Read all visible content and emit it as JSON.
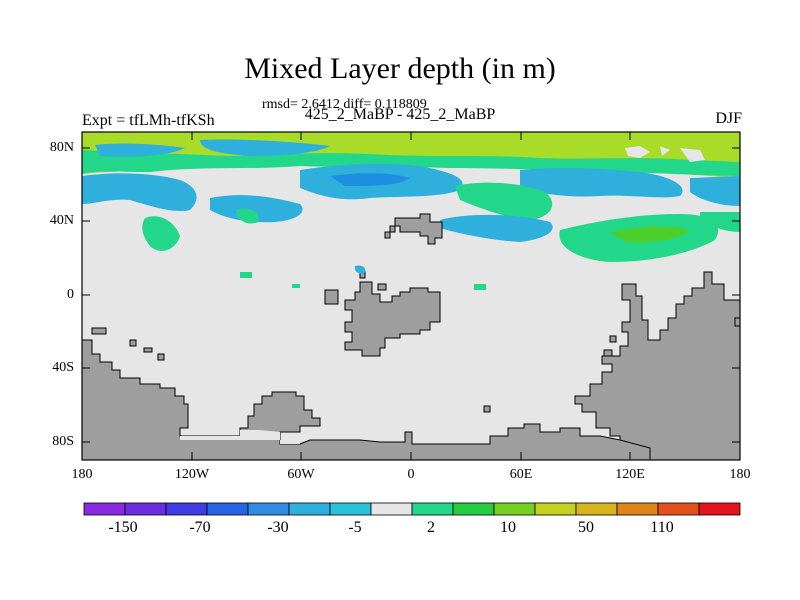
{
  "header": {
    "title": "Mixed Layer depth (in m)",
    "stats": "rmsd= 2.6412 diff= 0.118809",
    "case": "425_2_MaBP - 425_2_MaBP",
    "expt": "Expt = tfLMh-tfKSh",
    "season": "DJF"
  },
  "axes": {
    "y_ticks": [
      "80N",
      "40N",
      "0",
      "40S",
      "80S"
    ],
    "x_ticks": [
      "180",
      "120W",
      "60W",
      "0",
      "60E",
      "120E",
      "180"
    ]
  },
  "colors": {
    "land": "#9e9e9e",
    "near_zero": "#e6e6e6",
    "light_blue": "#2fb0dc",
    "mid_blue": "#1e8fe0",
    "aqua_green": "#22d78a",
    "yellow_green": "#a8dc28",
    "green": "#4ccf2a"
  },
  "colorbar": {
    "labels": [
      "-150",
      "-70",
      "-30",
      "-5",
      "2",
      "10",
      "50",
      "110"
    ],
    "colors": [
      "#8a2be2",
      "#6a2ee0",
      "#3d3de3",
      "#2664e4",
      "#2f8ce2",
      "#2fb0dc",
      "#28c3d8",
      "#e6e6e6",
      "#22d78a",
      "#25cc40",
      "#75d120",
      "#c4d21e",
      "#d8b51c",
      "#de8418",
      "#e2511a",
      "#e0141a"
    ]
  },
  "map_data": {
    "region": "global",
    "lon_range": [
      -180,
      180
    ],
    "lat_range": [
      -90,
      90
    ]
  }
}
